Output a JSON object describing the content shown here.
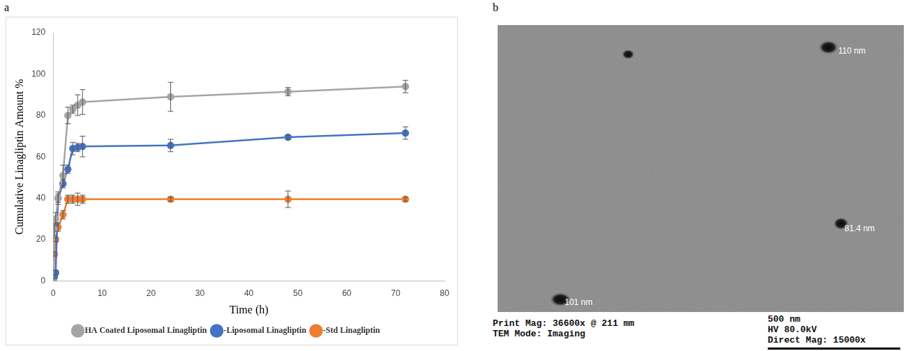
{
  "chart_data": {
    "type": "line",
    "panel": "a",
    "x_label": "Time (h)",
    "y_label": "Cumulative Linagliptin Amount %",
    "x": [
      0,
      0.25,
      0.5,
      1,
      2,
      3,
      4,
      5,
      6,
      24,
      48,
      72
    ],
    "series": [
      {
        "name": "HA Coated Liposomal Linagliptin",
        "color": "#a5a5a5",
        "marker": "circle",
        "values": [
          0,
          25,
          30,
          40,
          51,
          80,
          83,
          85,
          86.5,
          89,
          91.5,
          94
        ],
        "errors": [
          0,
          3,
          3,
          3,
          5,
          4,
          2,
          5,
          6,
          7,
          2,
          3
        ]
      },
      {
        "name": "-Liposomal Linagliptin",
        "color": "#4472c4",
        "marker": "circle",
        "values": [
          0,
          2,
          4,
          40,
          47,
          54,
          64,
          64.5,
          65,
          65.5,
          69.5,
          71.5
        ],
        "errors": [
          0,
          1,
          1,
          2,
          2,
          2,
          3,
          2,
          5,
          3,
          1,
          3
        ]
      },
      {
        "name": "-Std Linagliptin",
        "color": "#ed7d31",
        "marker": "circle",
        "values": [
          0,
          13,
          20,
          26,
          32,
          39.5,
          39.5,
          39.5,
          39.5,
          39.5,
          39.5,
          39.5
        ],
        "errors": [
          0,
          1,
          1,
          2,
          2,
          2,
          2,
          3,
          2,
          1,
          4,
          1
        ]
      }
    ],
    "xlim": [
      0,
      80
    ],
    "xticks": [
      0,
      10,
      20,
      30,
      40,
      50,
      60,
      70,
      80
    ],
    "ylim": [
      0,
      120
    ],
    "yticks": [
      0,
      20,
      40,
      60,
      80,
      100,
      120
    ],
    "grid": false,
    "legend": "bottom"
  },
  "micrograph": {
    "panel": "b",
    "particle_labels": [
      "110 nm",
      "81.4 nm",
      "101 nm"
    ],
    "footer_left": [
      "Print Mag: 36600x @ 211 mm",
      "TEM Mode: Imaging"
    ],
    "footer_right": [
      "500 nm",
      "HV 80.0kV",
      "Direct Mag: 15000x"
    ]
  }
}
